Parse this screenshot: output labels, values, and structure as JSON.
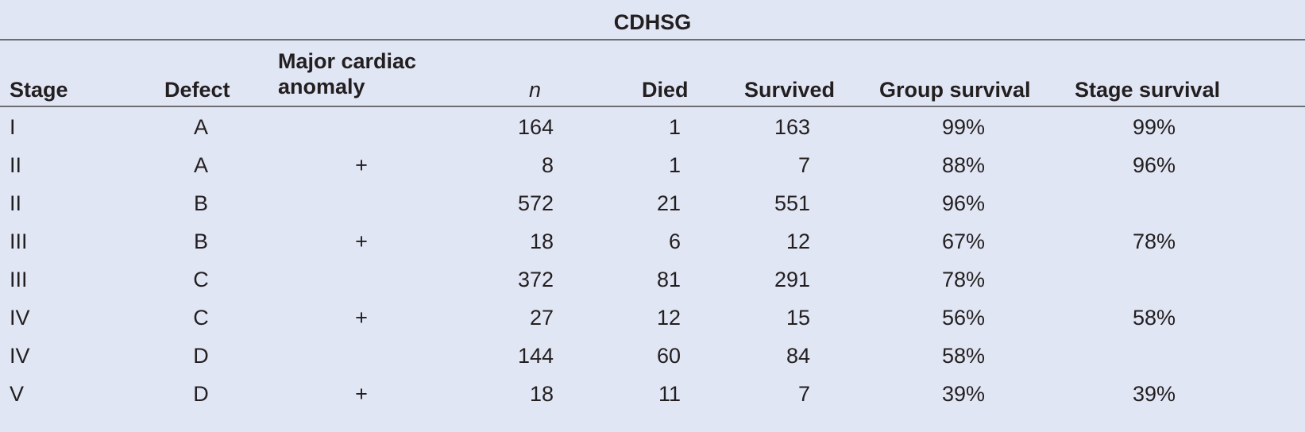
{
  "table": {
    "title": "CDHSG",
    "columns": [
      "Stage",
      "Defect",
      "Major cardiac anomaly",
      "n",
      "Died",
      "Survived",
      "Group survival",
      "Stage survival"
    ],
    "rows": [
      [
        "I",
        "A",
        null,
        164,
        1,
        163,
        "99%",
        "99%"
      ],
      [
        "II",
        "A",
        "+",
        8,
        1,
        7,
        "88%",
        "96%"
      ],
      [
        "II",
        "B",
        null,
        572,
        21,
        551,
        "96%",
        null
      ],
      [
        "III",
        "B",
        "+",
        18,
        6,
        12,
        "67%",
        "78%"
      ],
      [
        "III",
        "C",
        null,
        372,
        81,
        291,
        "78%",
        null
      ],
      [
        "IV",
        "C",
        "+",
        27,
        12,
        15,
        "56%",
        "58%"
      ],
      [
        "IV",
        "D",
        null,
        144,
        60,
        84,
        "58%",
        null
      ],
      [
        "V",
        "D",
        "+",
        18,
        11,
        7,
        "39%",
        "39%"
      ]
    ]
  }
}
